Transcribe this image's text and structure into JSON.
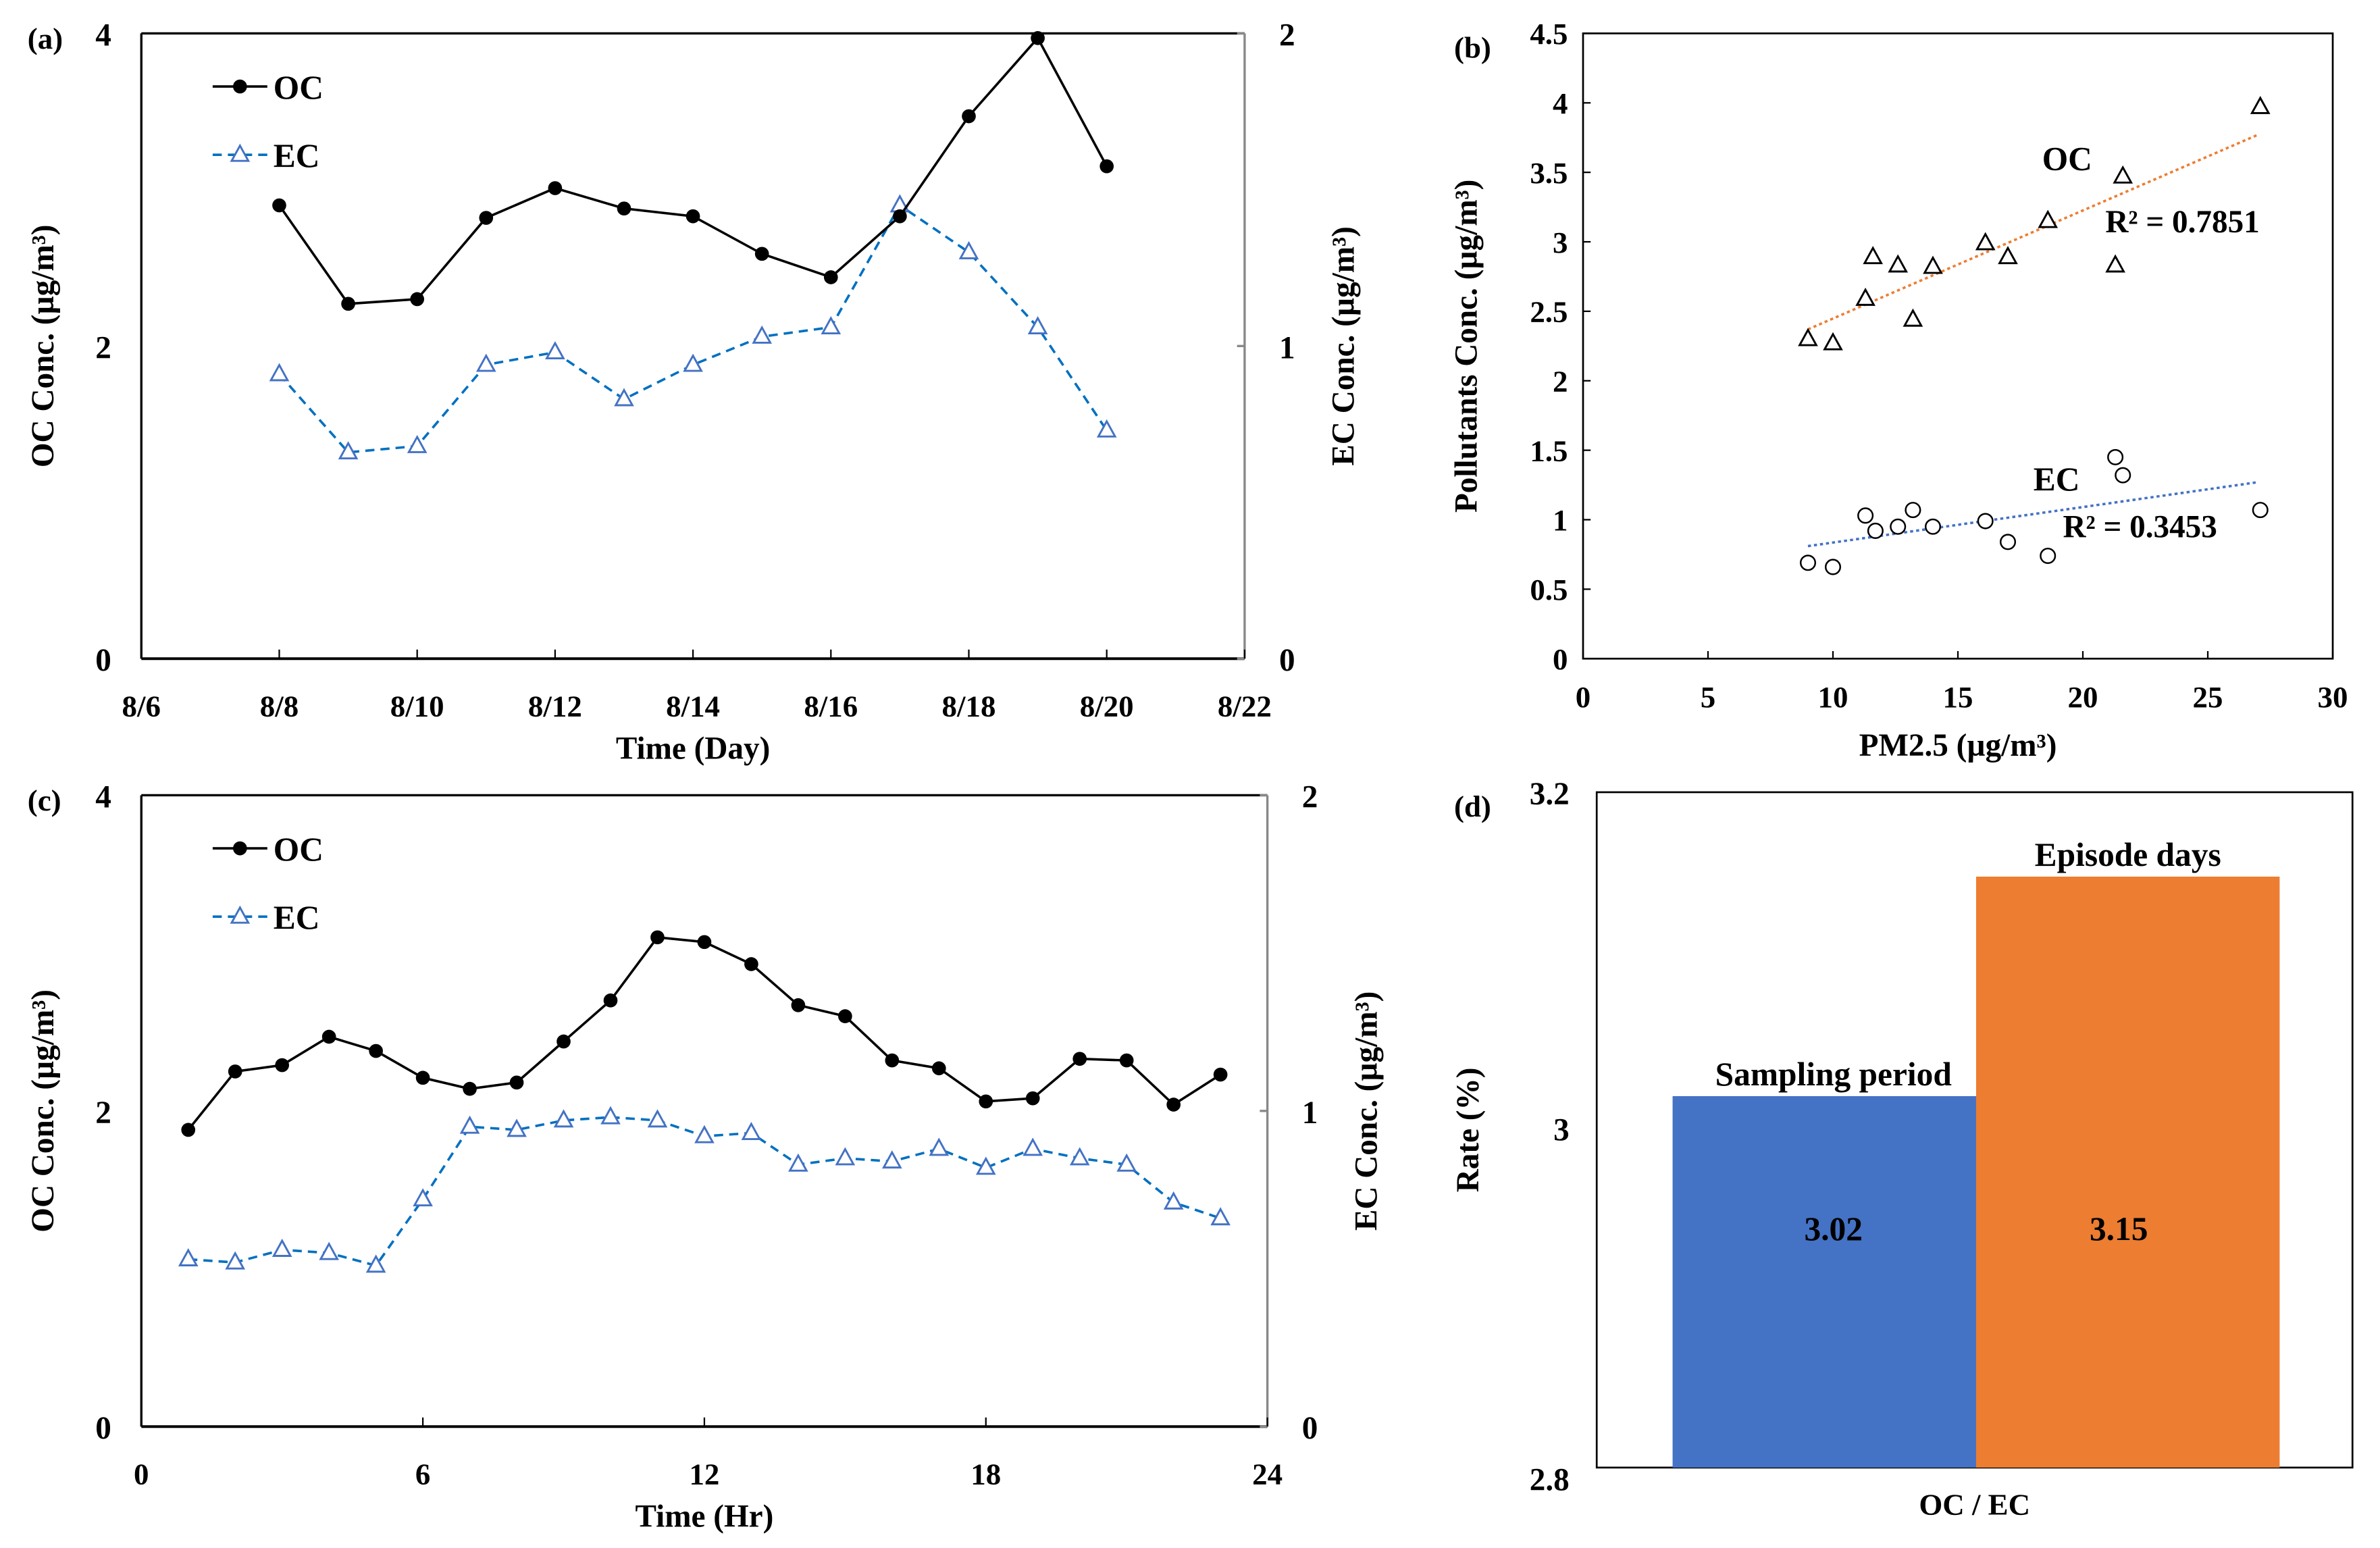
{
  "chart_data": [
    {
      "panel": "(a)",
      "type": "line",
      "xlabel": "Time (Day)",
      "ylabel": "OC Conc. (µg/m³)",
      "y2label": "EC Conc. (µg/m³)",
      "x_ticks": [
        "8/6",
        "8/8",
        "8/10",
        "8/12",
        "8/14",
        "8/16",
        "8/18",
        "8/20",
        "8/22"
      ],
      "y_ticks": [
        "0",
        "2",
        "4"
      ],
      "y2_ticks": [
        "0",
        "1",
        "2"
      ],
      "ylim": [
        0,
        4
      ],
      "y2lim": [
        0,
        2
      ],
      "x": [
        "8/8",
        "8/9",
        "8/10",
        "8/11",
        "8/12",
        "8/13",
        "8/14",
        "8/15",
        "8/16",
        "8/17",
        "8/18",
        "8/19",
        "8/20"
      ],
      "x_day": [
        8,
        9,
        10,
        11,
        12,
        13,
        14,
        15,
        16,
        17,
        18,
        19,
        20
      ],
      "series": [
        {
          "name": "OC",
          "axis": "left",
          "color": "#000000",
          "values": [
            2.9,
            2.27,
            2.3,
            2.82,
            3.01,
            2.88,
            2.83,
            2.59,
            2.44,
            2.83,
            3.47,
            3.97,
            3.15
          ]
        },
        {
          "name": "EC",
          "axis": "right",
          "color": "#4472C4",
          "values": [
            0.91,
            0.66,
            0.68,
            0.94,
            0.98,
            0.83,
            0.94,
            1.03,
            1.06,
            1.45,
            1.3,
            1.06,
            0.73
          ]
        }
      ],
      "legend": "top-left"
    },
    {
      "panel": "(b)",
      "type": "scatter",
      "xlabel": "PM2.5 (µg/m³)",
      "xlabel_main": "PM",
      "xlabel_sub": "2.5",
      "xlabel_rest": " (µg/m³)",
      "ylabel": "Pollutants Conc. (µg/m³)",
      "xlim": [
        0,
        30
      ],
      "ylim": [
        0,
        4.5
      ],
      "x_ticks": [
        "0",
        "5",
        "10",
        "15",
        "20",
        "25",
        "30"
      ],
      "y_ticks": [
        "0",
        "0.5",
        "1",
        "1.5",
        "2",
        "2.5",
        "3",
        "3.5",
        "4",
        "4.5"
      ],
      "series": [
        {
          "name": "OC",
          "marker": "triangle",
          "trend_color": "#ED7D31",
          "r2": "R² = 0.7851",
          "x": [
            9,
            10,
            11.3,
            11.6,
            12.6,
            13.2,
            14,
            16.1,
            17,
            18.6,
            21.3,
            21.6,
            27.1
          ],
          "y": [
            2.3,
            2.27,
            2.59,
            2.89,
            2.83,
            2.44,
            2.82,
            2.99,
            2.89,
            3.15,
            2.83,
            3.47,
            3.97
          ],
          "trend": [
            [
              9,
              2.37
            ],
            [
              27,
              3.77
            ]
          ]
        },
        {
          "name": "EC",
          "marker": "circle",
          "trend_color": "#4472C4",
          "r2": "R² = 0.3453",
          "x": [
            9,
            10,
            11.3,
            11.7,
            12.6,
            13.2,
            14,
            16.1,
            17,
            18.6,
            21.3,
            21.6,
            27.1
          ],
          "y": [
            0.69,
            0.66,
            1.03,
            0.92,
            0.95,
            1.07,
            0.95,
            0.99,
            0.84,
            0.74,
            1.45,
            1.32,
            1.07
          ],
          "trend": [
            [
              9,
              0.81
            ],
            [
              27,
              1.27
            ]
          ]
        }
      ]
    },
    {
      "panel": "(c)",
      "type": "line",
      "xlabel": "Time (Hr)",
      "ylabel": "OC Conc. (µg/m³)",
      "y2label": "EC Conc. (µg/m³)",
      "x_ticks": [
        "0",
        "6",
        "12",
        "18",
        "24"
      ],
      "y_ticks": [
        "0",
        "2",
        "4"
      ],
      "y2_ticks": [
        "0",
        "1",
        "2"
      ],
      "xlim": [
        0,
        24
      ],
      "ylim": [
        0,
        4
      ],
      "y2lim": [
        0,
        2
      ],
      "x": [
        1,
        2,
        3,
        4,
        5,
        6,
        7,
        8,
        9,
        10,
        11,
        12,
        13,
        14,
        15,
        16,
        17,
        18,
        19,
        20,
        21,
        22,
        23
      ],
      "series": [
        {
          "name": "OC",
          "axis": "left",
          "color": "#000000",
          "values": [
            1.88,
            2.25,
            2.29,
            2.47,
            2.38,
            2.21,
            2.14,
            2.18,
            2.44,
            2.7,
            3.1,
            3.07,
            2.93,
            2.67,
            2.6,
            2.32,
            2.27,
            2.06,
            2.08,
            2.33,
            2.32,
            2.04,
            2.23
          ]
        },
        {
          "name": "EC",
          "axis": "right",
          "color": "#4472C4",
          "values": [
            0.53,
            0.52,
            0.56,
            0.55,
            0.51,
            0.72,
            0.95,
            0.94,
            0.97,
            0.98,
            0.97,
            0.92,
            0.93,
            0.83,
            0.85,
            0.84,
            0.88,
            0.82,
            0.88,
            0.85,
            0.83,
            0.71,
            0.66
          ]
        }
      ],
      "legend": "top-left"
    },
    {
      "panel": "(d)",
      "type": "bar",
      "xlabel": "OC / EC",
      "ylabel": "Rate (%)",
      "ylim": [
        2.8,
        3.2
      ],
      "y_ticks": [
        "2.8",
        "3",
        "3.2"
      ],
      "categories": [
        "Sampling period",
        "Episode days"
      ],
      "values": [
        3.02,
        3.15
      ],
      "value_labels": [
        "3.02",
        "3.15"
      ],
      "colors": [
        "#4472C4",
        "#ED7D31"
      ],
      "label_colors": [
        "#000000",
        "#FF0000"
      ]
    }
  ]
}
